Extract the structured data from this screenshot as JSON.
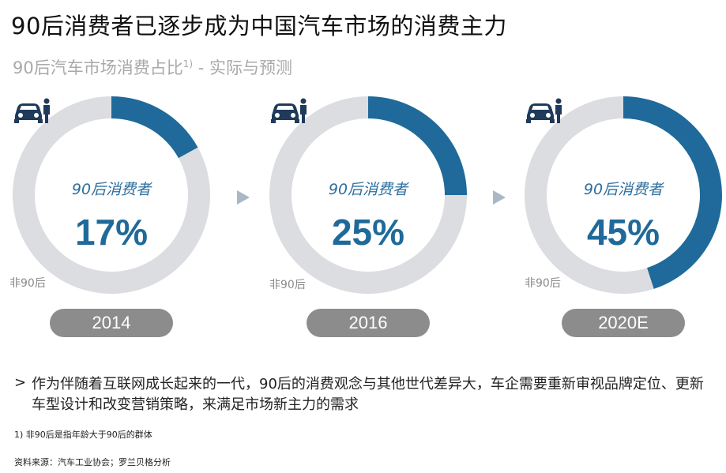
{
  "title": "90后消费者已逐步成为中国汽车市场的消费主力",
  "subtitle": {
    "text": "90后汽车市场消费占比",
    "sup": "1)",
    "tail": " - 实际与预测"
  },
  "colors": {
    "highlight": "#1f6a9a",
    "remainder": "#dcdde0",
    "pill": "#8c8c8c",
    "arrow": "#a9b8c6"
  },
  "icons": [
    "car-with-person-icon",
    "arrow-right-icon"
  ],
  "chart_data": [
    {
      "type": "pie",
      "variant": "donut",
      "category": "2014",
      "slices": [
        {
          "name": "90后消费者",
          "value": 17
        },
        {
          "name": "非90后",
          "value": 83
        }
      ],
      "center_label": "90后消费者",
      "center_value": "17%",
      "other_label": "非90后"
    },
    {
      "type": "pie",
      "variant": "donut",
      "category": "2016",
      "slices": [
        {
          "name": "90后消费者",
          "value": 25
        },
        {
          "name": "非90后",
          "value": 75
        }
      ],
      "center_label": "90后消费者",
      "center_value": "25%",
      "other_label": "非90后"
    },
    {
      "type": "pie",
      "variant": "donut",
      "category": "2020E",
      "slices": [
        {
          "name": "90后消费者",
          "value": 45
        },
        {
          "name": "非90后",
          "value": 55
        }
      ],
      "center_label": "90后消费者",
      "center_value": "45%",
      "other_label": "非90后"
    }
  ],
  "bullet": {
    "marker": ">",
    "text": "作为伴随着互联网成长起来的一代，90后的消费观念与其他世代差异大，车企需要重新审视品牌定位、更新车型设计和改变营销策略，来满足市场新主力的需求"
  },
  "footnote": "1) 非90后是指年龄大于90后的群体",
  "source": "资料来源：汽车工业协会；罗兰贝格分析"
}
